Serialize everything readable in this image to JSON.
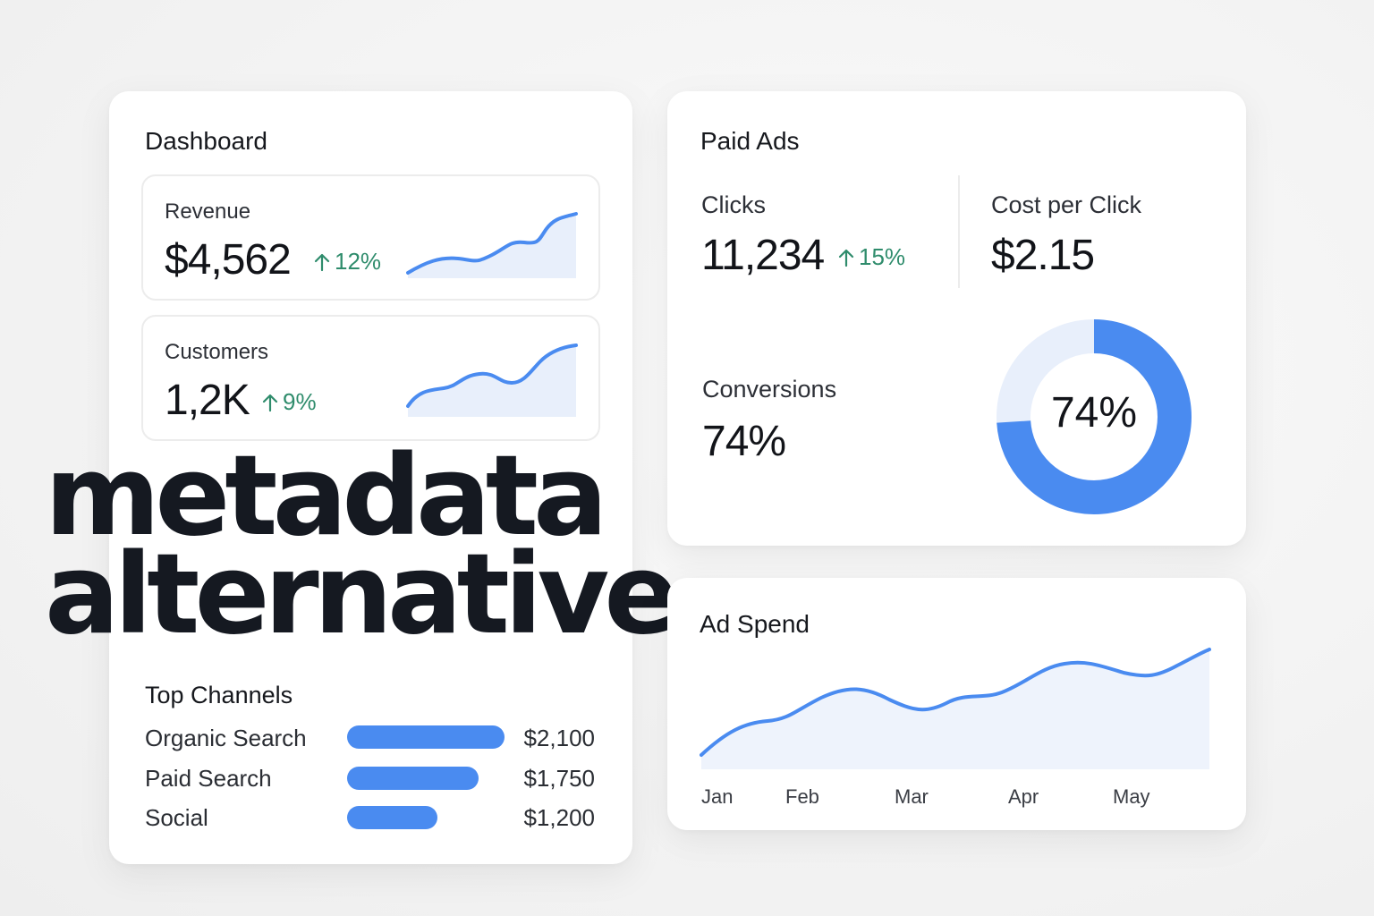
{
  "dashboard": {
    "title": "Dashboard",
    "revenue": {
      "label": "Revenue",
      "value": "$4,562",
      "delta": "12%"
    },
    "customers": {
      "label": "Customers",
      "value": "1,2K",
      "delta": "9%"
    },
    "top_channels": {
      "title": "Top Channels",
      "items": [
        {
          "label": "Organic Search",
          "value": "$2,100",
          "amount": 2100
        },
        {
          "label": "Paid Search",
          "value": "$1,750",
          "amount": 1750
        },
        {
          "label": "Social",
          "value": "$1,200",
          "amount": 1200
        }
      ]
    }
  },
  "overlay": {
    "line1": "metadata",
    "line2": "alternative"
  },
  "paid_ads": {
    "title": "Paid Ads",
    "clicks": {
      "label": "Clicks",
      "value": "11,234",
      "delta": "15%"
    },
    "cost_per_click": {
      "label": "Cost per Click",
      "value": "$2.15"
    },
    "conversions": {
      "label": "Conversions",
      "value": "74%",
      "donut_label": "74%",
      "fraction": 0.74
    }
  },
  "ad_spend": {
    "title": "Ad Spend",
    "months": [
      "Jan",
      "Feb",
      "Mar",
      "Apr",
      "May"
    ]
  },
  "colors": {
    "accent": "#4a8bf0",
    "accent_light": "#e8effb",
    "positive": "#2f8c6c",
    "text": "#16181d"
  },
  "icons": {
    "delta": "arrow-up-icon"
  }
}
